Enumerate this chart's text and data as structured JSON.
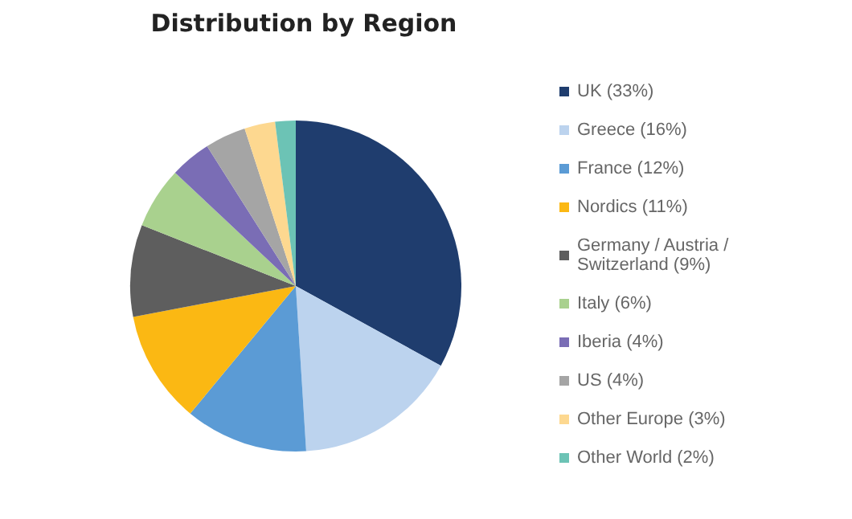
{
  "chart_data": {
    "type": "pie",
    "title": "Distribution by Region",
    "categories": [
      "UK (33%)",
      "Greece (16%)",
      "France (12%)",
      "Nordics (11%)",
      "Germany / Austria / Switzerland (9%)",
      "Italy (6%)",
      "Iberia (4%)",
      "US (4%)",
      "Other Europe (3%)",
      "Other World (2%)"
    ],
    "values": [
      33,
      16,
      12,
      11,
      9,
      6,
      4,
      4,
      3,
      2
    ],
    "colors": [
      "#1f3d6e",
      "#bcd3ee",
      "#5b9bd5",
      "#fbb813",
      "#5e5e5e",
      "#a9d18e",
      "#7a6db5",
      "#a5a5a5",
      "#fdd890",
      "#6cc3b5"
    ],
    "legend": "right"
  }
}
